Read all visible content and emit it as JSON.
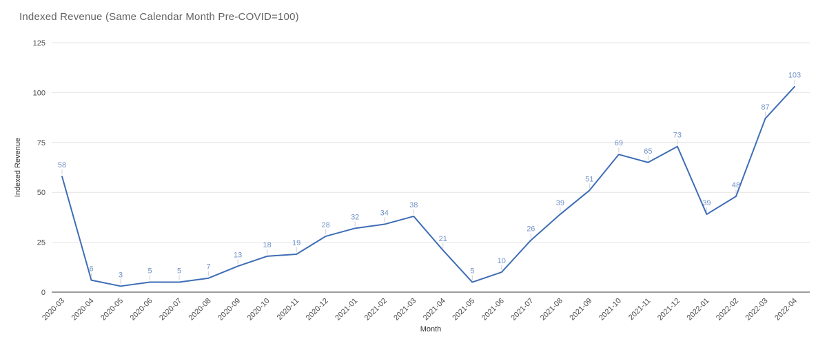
{
  "chart_data": {
    "type": "line",
    "title": "Indexed Revenue (Same Calendar Month Pre-COVID=100)",
    "xlabel": "Month",
    "ylabel": "Indexed Revenue",
    "categories": [
      "2020-03",
      "2020-04",
      "2020-05",
      "2020-06",
      "2020-07",
      "2020-08",
      "2020-09",
      "2020-10",
      "2020-11",
      "2020-12",
      "2021-01",
      "2021-02",
      "2021-03",
      "2021-04",
      "2021-05",
      "2021-06",
      "2021-07",
      "2021-08",
      "2021-09",
      "2021-10",
      "2021-11",
      "2021-12",
      "2022-01",
      "2022-02",
      "2022-03",
      "2022-04"
    ],
    "values": [
      58,
      6,
      3,
      5,
      5,
      7,
      13,
      18,
      19,
      28,
      32,
      34,
      38,
      21,
      5,
      10,
      26,
      39,
      51,
      69,
      65,
      73,
      39,
      48,
      87,
      103
    ],
    "ylim": [
      0,
      125
    ],
    "yticks": [
      0,
      25,
      50,
      75,
      100,
      125
    ],
    "grid": true,
    "legend": "none",
    "point_labels_visible": true,
    "colors": {
      "line": "#3e6db5",
      "annotation": "#7292c8",
      "annotation_stem": "#cfcfcf",
      "grid": "#e4e4e4",
      "baseline": "#3d3d3d",
      "tick": "#4a4a4a",
      "title": "#636363",
      "axis_title": "#333333",
      "background": "#ffffff"
    }
  }
}
